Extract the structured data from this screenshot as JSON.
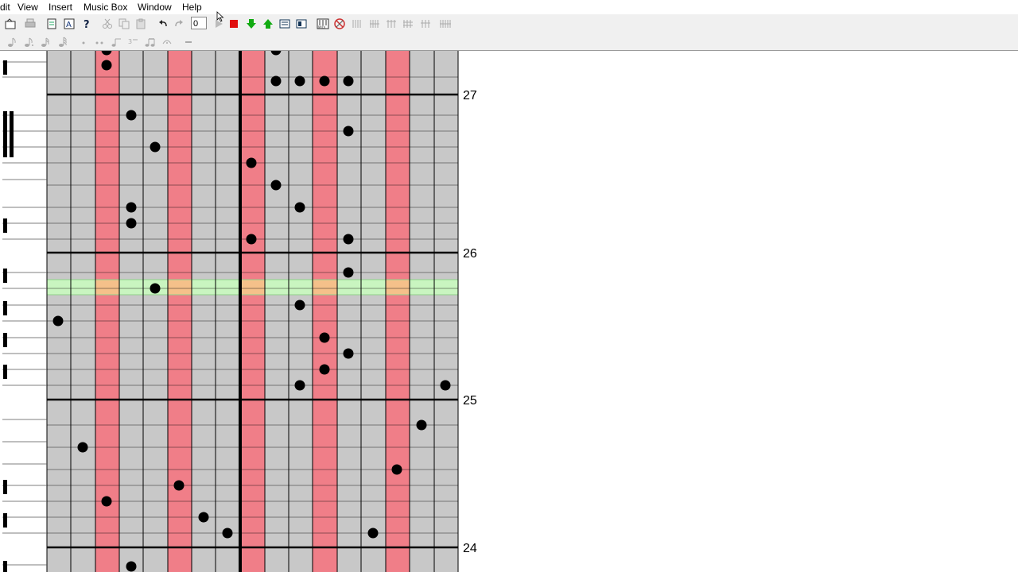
{
  "menu": [
    "dit",
    "View",
    "Insert",
    "Music Box",
    "Window",
    "Help"
  ],
  "toolbar": {
    "tempo_value": "0",
    "icons": [
      "open-icon",
      "print-icon",
      "new-icon",
      "text-icon",
      "help-icon",
      "cut-icon",
      "copy-icon",
      "paste-icon",
      "undo-icon",
      "redo-icon",
      "play-icon",
      "stop-icon",
      "arrow-down-icon",
      "arrow-up-icon",
      "export-icon",
      "import-icon",
      "midi-icon",
      "settings-icon",
      "grid-view-1-icon",
      "grid-view-2-icon",
      "grid-view-3-icon",
      "grid-view-4-icon",
      "grid-view-5-icon",
      "grid-view-6-icon"
    ],
    "note_icons": [
      "eighth-note-icon",
      "dotted-eighth-icon",
      "sixteenth-note-icon",
      "thirty-second-note-icon",
      "dot-icon",
      "double-dot-icon",
      "tie-icon",
      "triplet-icon",
      "beam-icon",
      "fermata-icon",
      "rest-icon"
    ]
  },
  "colors": {
    "lane_gray": "#c8c8c8",
    "lane_red": "#f07e88",
    "highlight": "#c9f5c0",
    "highlight_on_red": "#f5c08a",
    "note": "#000000"
  },
  "measures": [
    {
      "label": "27"
    },
    {
      "label": "26"
    },
    {
      "label": "25"
    },
    {
      "label": "24"
    }
  ]
}
